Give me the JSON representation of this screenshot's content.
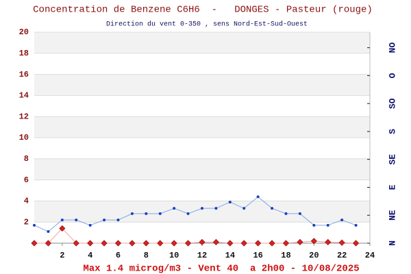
{
  "chart_data": {
    "type": "line",
    "title": "Concentration de Benzene C6H6  -   DONGES - Pasteur (rouge)",
    "subtitle": "Direction du vent 0-350 , sens Nord-Est-Sud-Ouest",
    "footer": "Max 1.4 microg/m3 - Vent 40  a 2h00 - 10/08/2025",
    "x": [
      0,
      1,
      2,
      3,
      4,
      5,
      6,
      7,
      8,
      9,
      10,
      11,
      12,
      13,
      14,
      15,
      16,
      17,
      18,
      19,
      20,
      21,
      22,
      23
    ],
    "series": [
      {
        "color": "#1a3fbf",
        "values": [
          1.7,
          1.1,
          2.2,
          2.2,
          1.7,
          2.2,
          2.2,
          2.8,
          2.8,
          2.8,
          3.3,
          2.8,
          3.3,
          3.3,
          3.9,
          3.3,
          4.4,
          3.3,
          2.8,
          2.8,
          1.7,
          1.7,
          2.2,
          1.7
        ]
      },
      {
        "color": "#e02020",
        "values": [
          0,
          0,
          1.4,
          0,
          0,
          0,
          0,
          0,
          0,
          0,
          0,
          0,
          0.1,
          0.1,
          0,
          0,
          0,
          0,
          0,
          0.1,
          0.2,
          0.1,
          0.05,
          0
        ]
      }
    ],
    "xlim": [
      0,
      24
    ],
    "xticks": [
      2,
      4,
      6,
      8,
      10,
      12,
      14,
      16,
      18,
      20,
      22,
      24
    ],
    "ylim": [
      0,
      20
    ],
    "yticks": [
      2,
      4,
      6,
      8,
      10,
      12,
      14,
      16,
      18,
      20
    ],
    "y2lim": [
      0,
      340
    ],
    "y2ticks": [
      {
        "value": 0,
        "label": "N"
      },
      {
        "value": 45,
        "label": "NE"
      },
      {
        "value": 90,
        "label": "E"
      },
      {
        "value": 135,
        "label": "SE"
      },
      {
        "value": 180,
        "label": "S"
      },
      {
        "value": 225,
        "label": "SO"
      },
      {
        "value": 270,
        "label": "O"
      },
      {
        "value": 315,
        "label": "NO"
      }
    ],
    "grid": true
  }
}
